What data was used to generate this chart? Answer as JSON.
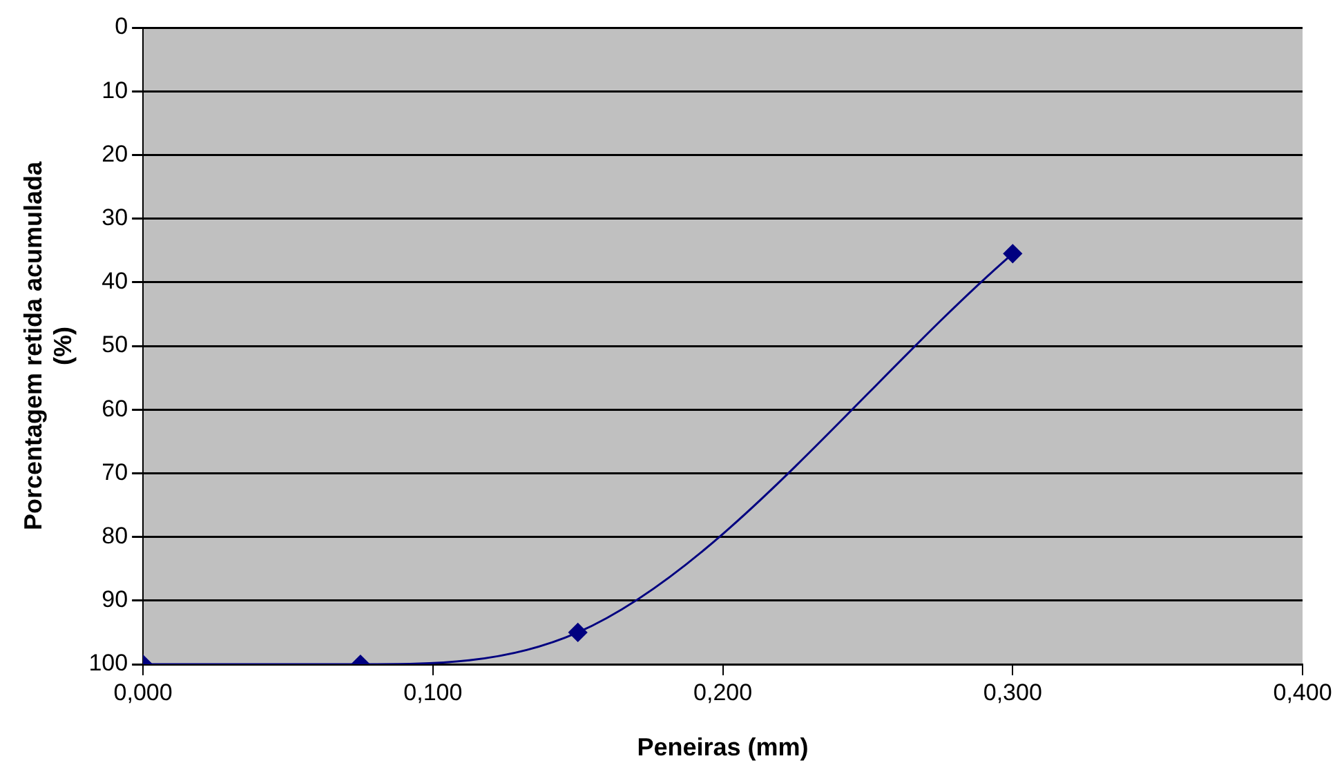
{
  "chart_data": {
    "type": "line",
    "xlabel": "Peneiras (mm)",
    "ylabel": "Porcentagem retida acumulada (%)",
    "x": [
      0,
      0.075,
      0.15,
      0.3
    ],
    "series": [
      {
        "color": "#000080",
        "values": [
          100,
          100,
          95,
          35.5
        ]
      }
    ],
    "xlim": [
      0,
      0.4
    ],
    "xticks": [
      {
        "value": 0,
        "label": "0,000"
      },
      {
        "value": 0.1,
        "label": "0,100"
      },
      {
        "value": 0.2,
        "label": "0,200"
      },
      {
        "value": 0.3,
        "label": "0,300"
      },
      {
        "value": 0.4,
        "label": "0,400"
      }
    ],
    "ylim": [
      100,
      0
    ],
    "yticks": [
      0,
      10,
      20,
      30,
      40,
      50,
      60,
      70,
      80,
      90,
      100
    ],
    "grid": "y",
    "legend": false,
    "marker": "diamond",
    "line_style": "solid"
  }
}
